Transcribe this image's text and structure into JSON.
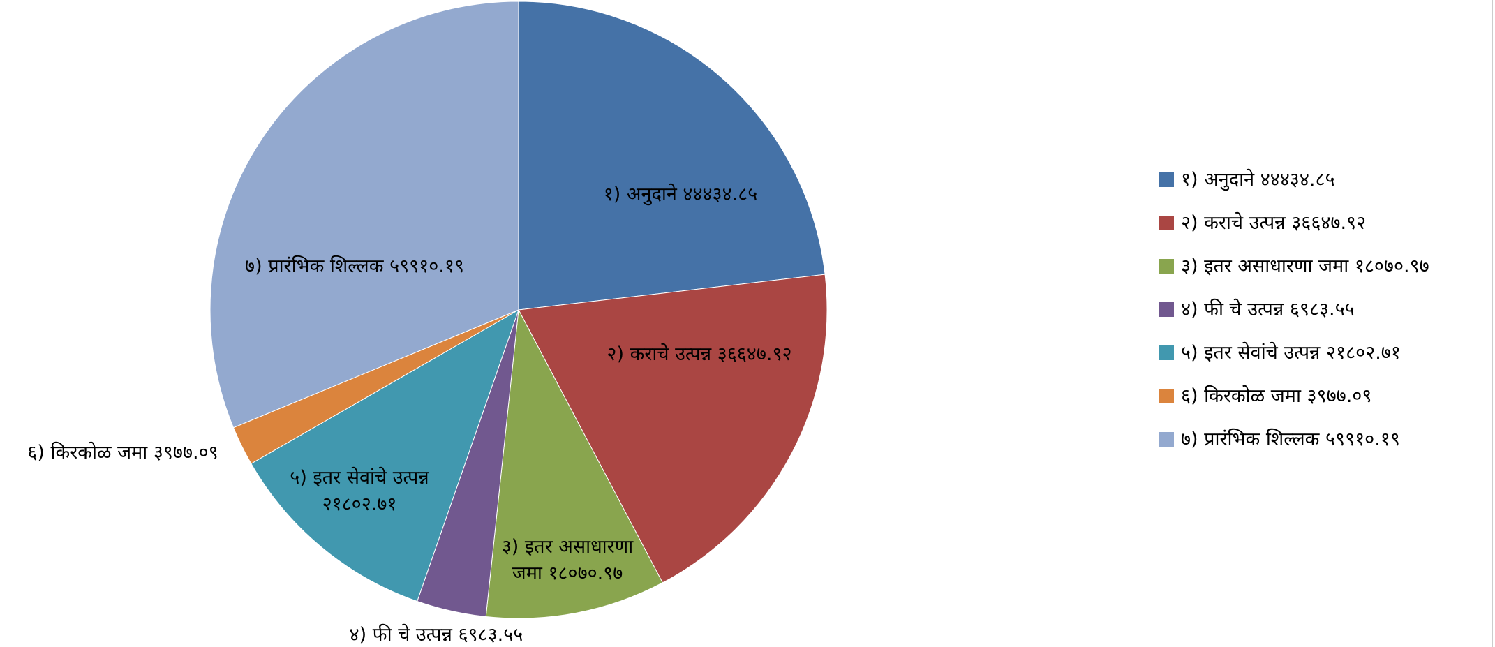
{
  "chart_data": {
    "type": "pie",
    "categories": [
      "१) अनुदाने",
      "२) कराचे उत्पन्न",
      "३) इतर असाधारणा जमा",
      "४) फी चे उत्पन्न",
      "५) इतर सेवांचे उत्पन्न",
      "६) किरकोळ जमा",
      "७) प्रारंभिक शिल्लक"
    ],
    "values": [
      44434.85,
      36647.92,
      18070.97,
      6983.55,
      21802.71,
      3977.09,
      59910.19
    ],
    "value_labels": [
      "४४४३४.८५",
      "३६६४७.९२",
      "१८०७०.९७",
      "६९८३.५५",
      "२१८०२.७१",
      "३९७७.०९",
      "५९९१०.१९"
    ],
    "colors": [
      "#4572a7",
      "#aa4643",
      "#89a54e",
      "#71588f",
      "#4198af",
      "#db843d",
      "#93a9cf"
    ],
    "legend": "right"
  }
}
